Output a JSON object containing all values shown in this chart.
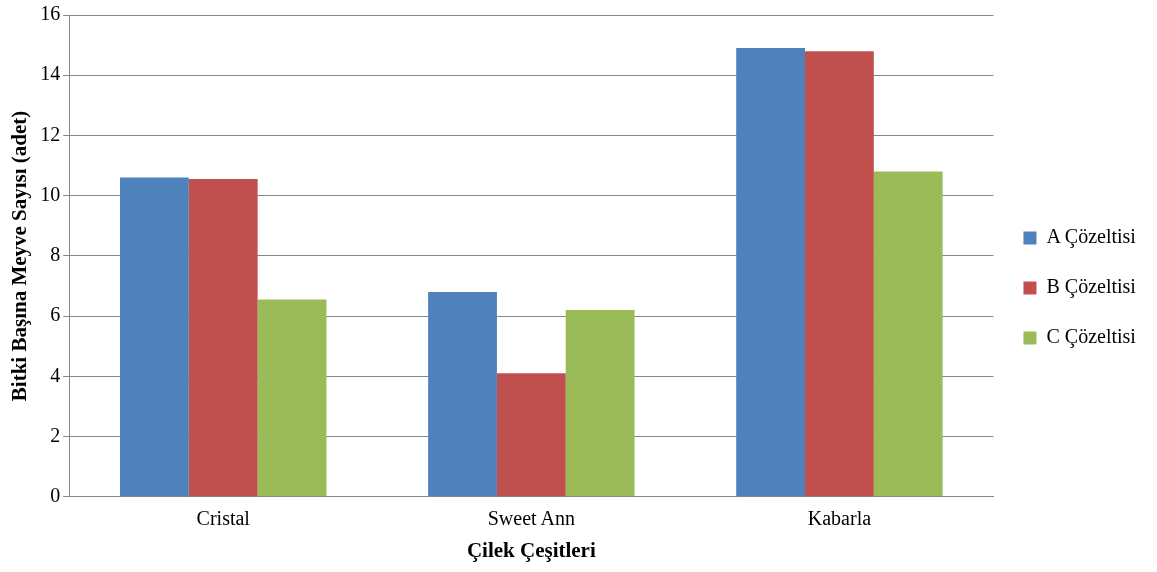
{
  "chart_data": {
    "type": "bar",
    "xlabel": "Çilek Çeşitleri",
    "ylabel": "Bitki Başına Meyve Sayısı (adet)",
    "categories": [
      "Cristal",
      "Sweet Ann",
      "Kabarla"
    ],
    "series": [
      {
        "name": "A Çözeltisi",
        "color": "#4f81bd",
        "values": [
          10.6,
          6.8,
          14.9
        ]
      },
      {
        "name": "B Çözeltisi",
        "color": "#c0504d",
        "values": [
          10.55,
          4.1,
          14.8
        ]
      },
      {
        "name": "C Çözeltisi",
        "color": "#9bbb59",
        "values": [
          6.55,
          6.2,
          10.8
        ]
      }
    ],
    "ylim": [
      0,
      16
    ],
    "yticks": [
      0,
      2,
      4,
      6,
      8,
      10,
      12,
      14,
      16
    ],
    "grid": "y",
    "legend": "right"
  }
}
